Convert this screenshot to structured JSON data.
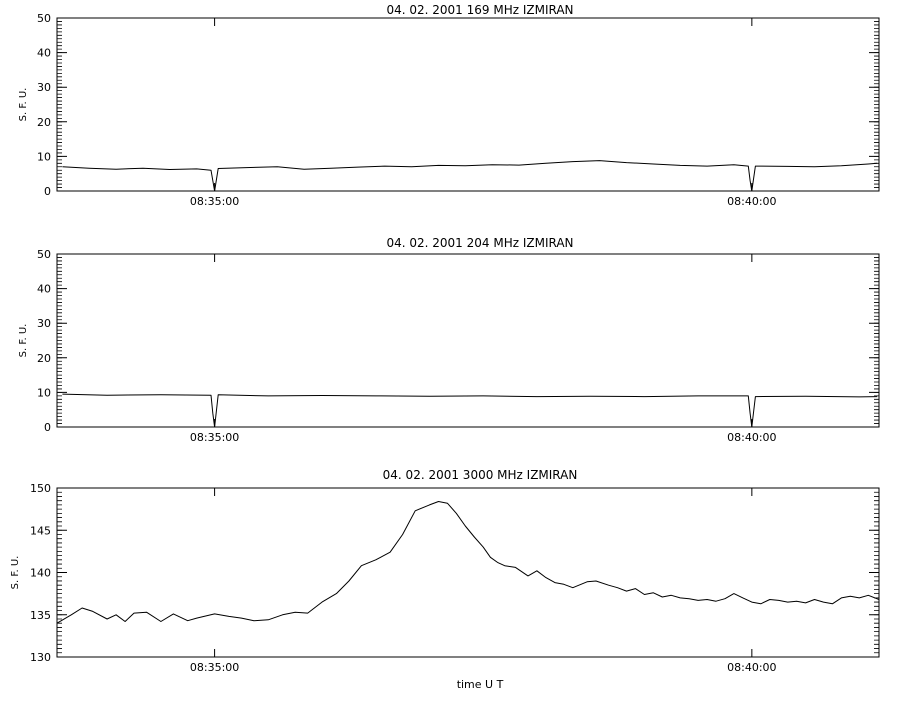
{
  "chart_data": [
    {
      "type": "line",
      "title": "04.  02.  2001    169  MHz    IZMIRAN",
      "ylabel": "S.  F.  U.",
      "xlabel": "",
      "ylim": [
        0,
        50
      ],
      "yticks": [
        "0",
        "10",
        "20",
        "30",
        "40",
        "50"
      ],
      "xlim": [
        "08:33:32",
        "08:41:11"
      ],
      "xticks": [
        "08:35:00",
        "08:40:00"
      ],
      "series": [
        {
          "x": [
            "08:33:35",
            "08:33:50",
            "08:34:05",
            "08:34:20",
            "08:34:35",
            "08:34:50",
            "08:34:58",
            "08:34:59",
            "08:35:00",
            "08:35:02",
            "08:35:20",
            "08:35:35",
            "08:35:50",
            "08:36:05",
            "08:36:20",
            "08:36:35",
            "08:36:50",
            "08:37:05",
            "08:37:20",
            "08:37:35",
            "08:37:50",
            "08:38:05",
            "08:38:20",
            "08:38:35",
            "08:38:50",
            "08:39:05",
            "08:39:20",
            "08:39:35",
            "08:39:50",
            "08:39:58",
            "08:39:59",
            "08:40:00",
            "08:40:02",
            "08:40:20",
            "08:40:35",
            "08:40:50",
            "08:41:05",
            "08:41:10"
          ],
          "values": [
            7,
            6.6,
            6.3,
            6.6,
            6.2,
            6.4,
            6,
            3,
            0,
            6.5,
            6.8,
            7,
            6.3,
            6.6,
            6.9,
            7.2,
            7,
            7.4,
            7.3,
            7.6,
            7.5,
            8,
            8.5,
            8.8,
            8.2,
            7.8,
            7.4,
            7.2,
            7.6,
            7.2,
            3,
            0,
            7.2,
            7.1,
            7,
            7.3,
            7.8,
            8
          ]
        }
      ]
    },
    {
      "type": "line",
      "title": "04.  02.  2001    204  MHz    IZMIRAN",
      "ylabel": "S.  F.  U.",
      "xlabel": "",
      "ylim": [
        0,
        50
      ],
      "yticks": [
        "0",
        "10",
        "20",
        "30",
        "40",
        "50"
      ],
      "xlim": [
        "08:33:32",
        "08:41:11"
      ],
      "xticks": [
        "08:35:00",
        "08:40:00"
      ],
      "series": [
        {
          "x": [
            "08:33:35",
            "08:34:00",
            "08:34:30",
            "08:34:58",
            "08:34:59",
            "08:35:00",
            "08:35:02",
            "08:35:30",
            "08:36:00",
            "08:36:30",
            "08:37:00",
            "08:37:30",
            "08:38:00",
            "08:38:30",
            "08:39:00",
            "08:39:30",
            "08:39:58",
            "08:39:59",
            "08:40:00",
            "08:40:02",
            "08:40:30",
            "08:41:00",
            "08:41:10"
          ],
          "values": [
            9.5,
            9.2,
            9.3,
            9.2,
            4,
            0,
            9.3,
            9.0,
            9.1,
            9.0,
            8.9,
            9.0,
            8.8,
            8.9,
            8.8,
            9.0,
            9.0,
            4,
            0,
            8.8,
            8.9,
            8.7,
            8.8
          ]
        }
      ]
    },
    {
      "type": "line",
      "title": "04.  02.  2001     3000  MHz     IZMIRAN",
      "ylabel": "S.  F.  U.",
      "xlabel": "time   U T",
      "ylim": [
        130,
        150
      ],
      "yticks": [
        "130",
        "135",
        "140",
        "145",
        "150"
      ],
      "xlim": [
        "08:33:32",
        "08:41:11"
      ],
      "xticks": [
        "08:35:00",
        "08:40:00"
      ],
      "series": [
        {
          "x": [
            "08:33:32",
            "08:33:40",
            "08:33:46",
            "08:33:52",
            "08:34:00",
            "08:34:05",
            "08:34:10",
            "08:34:15",
            "08:34:22",
            "08:34:30",
            "08:34:37",
            "08:34:45",
            "08:34:50",
            "08:35:00",
            "08:35:08",
            "08:35:15",
            "08:35:22",
            "08:35:30",
            "08:35:38",
            "08:35:45",
            "08:35:52",
            "08:36:00",
            "08:36:08",
            "08:36:15",
            "08:36:22",
            "08:36:30",
            "08:36:38",
            "08:36:45",
            "08:36:52",
            "08:37:00",
            "08:37:05",
            "08:37:10",
            "08:37:15",
            "08:37:20",
            "08:37:25",
            "08:37:30",
            "08:37:34",
            "08:37:38",
            "08:37:42",
            "08:37:48",
            "08:37:55",
            "08:38:00",
            "08:38:05",
            "08:38:10",
            "08:38:15",
            "08:38:20",
            "08:38:28",
            "08:38:33",
            "08:38:40",
            "08:38:45",
            "08:38:50",
            "08:38:55",
            "08:39:00",
            "08:39:05",
            "08:39:10",
            "08:39:15",
            "08:39:20",
            "08:39:25",
            "08:39:30",
            "08:39:35",
            "08:39:40",
            "08:39:45",
            "08:39:50",
            "08:39:55",
            "08:40:00",
            "08:40:05",
            "08:40:10",
            "08:40:15",
            "08:40:20",
            "08:40:25",
            "08:40:30",
            "08:40:35",
            "08:40:40",
            "08:40:45",
            "08:40:50",
            "08:40:55",
            "08:41:00",
            "08:41:05",
            "08:41:11"
          ],
          "values": [
            134,
            135,
            135.8,
            135.4,
            134.5,
            135,
            134.2,
            135.2,
            135.3,
            134.2,
            135.1,
            134.3,
            134.6,
            135.1,
            134.8,
            134.6,
            134.3,
            134.4,
            135.0,
            135.3,
            135.2,
            136.5,
            137.5,
            139.0,
            140.8,
            141.5,
            142.4,
            144.5,
            147.3,
            148.0,
            148.4,
            148.2,
            147.0,
            145.5,
            144.2,
            143.0,
            141.8,
            141.2,
            140.8,
            140.6,
            139.6,
            140.2,
            139.4,
            138.8,
            138.6,
            138.2,
            138.9,
            139.0,
            138.5,
            138.2,
            137.8,
            138.1,
            137.4,
            137.6,
            137.1,
            137.3,
            137.0,
            136.9,
            136.7,
            136.8,
            136.6,
            136.9,
            137.5,
            137.0,
            136.5,
            136.3,
            136.8,
            136.7,
            136.5,
            136.6,
            136.4,
            136.8,
            136.5,
            136.3,
            137.0,
            137.2,
            137.0,
            137.3,
            136.8
          ]
        }
      ]
    }
  ]
}
